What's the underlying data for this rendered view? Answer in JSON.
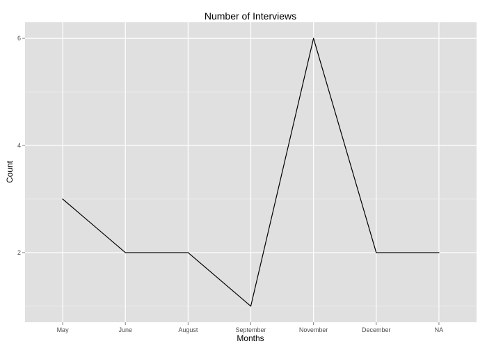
{
  "chart_data": {
    "type": "line",
    "title": "Number of Interviews",
    "xlabel": "Months",
    "ylabel": "Count",
    "categories": [
      "May",
      "June",
      "August",
      "September",
      "November",
      "December",
      "NA"
    ],
    "series": [
      {
        "name": "Count",
        "values": [
          3,
          2,
          2,
          1,
          6,
          2,
          2
        ]
      }
    ],
    "ylim": [
      0.7,
      6.3
    ],
    "yticks": [
      2,
      4,
      6
    ],
    "yticks_minor": [
      1,
      3,
      5
    ],
    "grid": true,
    "legend": "none"
  },
  "colors": {
    "panel_background": "#e0e0e0",
    "grid_major": "#ffffff",
    "grid_minor": "#efefef",
    "line": "#000000",
    "tick_label": "#4d4d4d"
  }
}
